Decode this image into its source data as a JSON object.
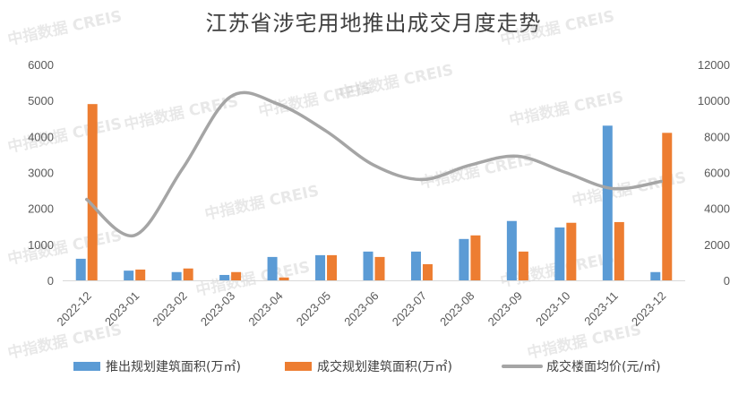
{
  "chart_data": {
    "type": "bar",
    "title": "江苏省涉宅用地推出成交月度走势",
    "categories": [
      "2022-12",
      "2023-01",
      "2023-02",
      "2023-03",
      "2023-04",
      "2023-05",
      "2023-06",
      "2023-07",
      "2023-08",
      "2023-09",
      "2023-10",
      "2023-11",
      "2023-12"
    ],
    "series": [
      {
        "name": "推出规划建筑面积(万㎡)",
        "kind": "bar",
        "axis": "left",
        "color": "#5B9BD5",
        "values": [
          600,
          270,
          230,
          150,
          650,
          700,
          800,
          800,
          1150,
          1650,
          1470,
          4300,
          230
        ]
      },
      {
        "name": "成交规划建筑面积(万㎡)",
        "kind": "bar",
        "axis": "left",
        "color": "#ED7D31",
        "values": [
          4900,
          300,
          330,
          230,
          80,
          700,
          650,
          450,
          1250,
          800,
          1600,
          1620,
          4100
        ]
      },
      {
        "name": "成交楼面均价(元/㎡)",
        "kind": "line",
        "axis": "right",
        "color": "#A5A5A5",
        "values": [
          4500,
          2500,
          6200,
          10200,
          9800,
          8300,
          6400,
          5600,
          6400,
          6900,
          6000,
          5100,
          5500
        ]
      }
    ],
    "y_left": {
      "min": 0,
      "max": 6000,
      "ticks": [
        0,
        1000,
        2000,
        3000,
        4000,
        5000,
        6000
      ]
    },
    "y_right": {
      "min": 0,
      "max": 12000,
      "ticks": [
        0,
        2000,
        4000,
        6000,
        8000,
        10000,
        12000
      ]
    },
    "grid": false,
    "legend_position": "bottom",
    "watermark": "中指数据 CREIS"
  }
}
